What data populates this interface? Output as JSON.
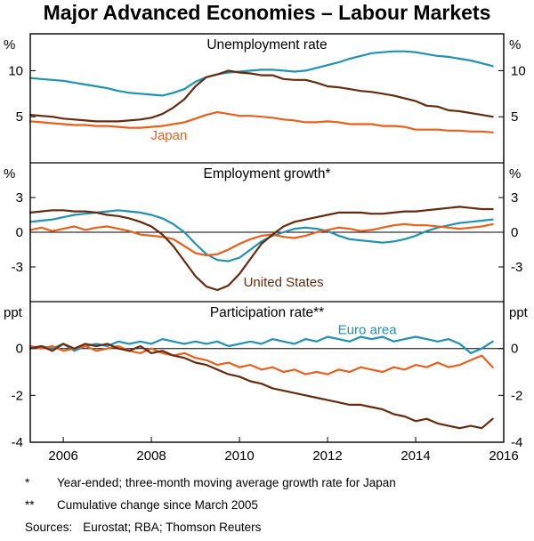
{
  "title": "Major Advanced Economies – Labour Markets",
  "colors": {
    "euro_area": "#2191B0",
    "united_states": "#662B0E",
    "japan": "#E8601C"
  },
  "x_axis": {
    "range": [
      2005.25,
      2016
    ],
    "ticks": [
      2006,
      2008,
      2010,
      2012,
      2014,
      2016
    ],
    "points": [
      2005.25,
      2005.5,
      2005.75,
      2006,
      2006.25,
      2006.5,
      2006.75,
      2007,
      2007.25,
      2007.5,
      2007.75,
      2008,
      2008.25,
      2008.5,
      2008.75,
      2009,
      2009.25,
      2009.5,
      2009.75,
      2010,
      2010.25,
      2010.5,
      2010.75,
      2011,
      2011.25,
      2011.5,
      2011.75,
      2012,
      2012.25,
      2012.5,
      2012.75,
      2013,
      2013.25,
      2013.5,
      2013.75,
      2014,
      2014.25,
      2014.5,
      2014.75,
      2015,
      2015.25,
      2015.5,
      2015.75
    ]
  },
  "chart_data": [
    {
      "type": "line",
      "title": "Unemployment rate",
      "unit": "%",
      "ylim": [
        0,
        14
      ],
      "yticks": [
        10,
        5
      ],
      "zero_line": false,
      "series": [
        {
          "name": "Euro area",
          "color_key": "euro_area",
          "values": [
            9.2,
            9.1,
            9.0,
            8.9,
            8.7,
            8.5,
            8.3,
            8.1,
            7.8,
            7.6,
            7.5,
            7.4,
            7.3,
            7.6,
            8.0,
            8.8,
            9.3,
            9.6,
            9.8,
            9.9,
            10.0,
            10.1,
            10.1,
            10.0,
            9.9,
            10.0,
            10.3,
            10.6,
            10.9,
            11.3,
            11.6,
            11.9,
            12.0,
            12.1,
            12.1,
            12.0,
            11.8,
            11.6,
            11.5,
            11.3,
            11.1,
            10.8,
            10.5
          ]
        },
        {
          "name": "United States",
          "color_key": "united_states",
          "values": [
            5.2,
            5.1,
            5.0,
            4.8,
            4.7,
            4.6,
            4.5,
            4.5,
            4.5,
            4.6,
            4.7,
            4.9,
            5.3,
            6.0,
            6.9,
            8.3,
            9.3,
            9.6,
            10.0,
            9.8,
            9.7,
            9.5,
            9.5,
            9.1,
            9.0,
            9.0,
            8.7,
            8.3,
            8.2,
            8.0,
            7.8,
            7.7,
            7.5,
            7.3,
            7.0,
            6.7,
            6.2,
            6.1,
            5.7,
            5.6,
            5.4,
            5.2,
            5.0
          ]
        },
        {
          "name": "Japan",
          "color_key": "japan",
          "label": {
            "text": "Japan",
            "x": 2008.4,
            "y": 2.5
          },
          "values": [
            4.5,
            4.4,
            4.3,
            4.2,
            4.1,
            4.1,
            4.0,
            4.0,
            3.9,
            3.8,
            3.8,
            3.9,
            4.0,
            4.2,
            4.4,
            4.8,
            5.2,
            5.5,
            5.3,
            5.1,
            5.1,
            5.0,
            4.9,
            4.7,
            4.6,
            4.4,
            4.4,
            4.5,
            4.4,
            4.2,
            4.2,
            4.2,
            4.0,
            4.0,
            3.9,
            3.6,
            3.6,
            3.6,
            3.5,
            3.5,
            3.4,
            3.4,
            3.3
          ]
        }
      ]
    },
    {
      "type": "line",
      "title": "Employment growth*",
      "unit": "%",
      "ylim": [
        -6,
        6
      ],
      "yticks": [
        3,
        0,
        -3
      ],
      "zero_line": true,
      "series": [
        {
          "name": "Euro area",
          "color_key": "euro_area",
          "values": [
            0.9,
            1.0,
            1.1,
            1.3,
            1.5,
            1.6,
            1.7,
            1.8,
            1.9,
            1.8,
            1.7,
            1.5,
            1.2,
            0.7,
            0.0,
            -1.0,
            -1.9,
            -2.4,
            -2.5,
            -2.2,
            -1.5,
            -0.8,
            -0.3,
            0.0,
            0.3,
            0.4,
            0.3,
            0.1,
            -0.3,
            -0.6,
            -0.7,
            -0.8,
            -0.9,
            -0.8,
            -0.6,
            -0.3,
            0.1,
            0.4,
            0.6,
            0.8,
            0.9,
            1.0,
            1.1
          ]
        },
        {
          "name": "Japan",
          "color_key": "japan",
          "values": [
            0.2,
            0.4,
            0.1,
            0.3,
            0.5,
            0.2,
            0.4,
            0.5,
            0.3,
            0.1,
            -0.2,
            -0.3,
            -0.4,
            -0.6,
            -1.2,
            -1.8,
            -2.0,
            -1.9,
            -1.5,
            -1.0,
            -0.6,
            -0.3,
            -0.2,
            -0.4,
            -0.5,
            -0.3,
            0.0,
            0.2,
            0.4,
            0.3,
            0.1,
            0.2,
            0.4,
            0.6,
            0.7,
            0.6,
            0.6,
            0.5,
            0.4,
            0.3,
            0.4,
            0.5,
            0.7
          ]
        },
        {
          "name": "United States",
          "color_key": "united_states",
          "label": {
            "text": "United States",
            "x": 2011.0,
            "y": -4.7
          },
          "values": [
            1.7,
            1.8,
            1.9,
            1.9,
            1.8,
            1.8,
            1.7,
            1.5,
            1.4,
            1.2,
            0.9,
            0.5,
            -0.2,
            -1.2,
            -2.5,
            -3.8,
            -4.7,
            -5.0,
            -4.6,
            -3.6,
            -2.3,
            -1.0,
            -0.2,
            0.5,
            0.9,
            1.1,
            1.3,
            1.5,
            1.7,
            1.7,
            1.7,
            1.6,
            1.6,
            1.7,
            1.8,
            1.8,
            1.9,
            2.0,
            2.1,
            2.2,
            2.1,
            2.0,
            2.0
          ]
        }
      ]
    },
    {
      "type": "line",
      "title": "Participation rate**",
      "unit": "ppt",
      "ylim": [
        -4,
        2
      ],
      "yticks": [
        0,
        -2,
        -4
      ],
      "zero_line": true,
      "series": [
        {
          "name": "Euro area",
          "color_key": "euro_area",
          "label": {
            "text": "Euro area",
            "x": 2012.9,
            "y": 0.62
          },
          "values": [
            0.0,
            0.1,
            0.0,
            0.2,
            -0.1,
            0.1,
            0.2,
            0.1,
            0.3,
            0.2,
            0.3,
            0.2,
            0.4,
            0.3,
            0.2,
            0.3,
            0.2,
            0.3,
            0.1,
            0.2,
            0.3,
            0.2,
            0.4,
            0.3,
            0.2,
            0.4,
            0.3,
            0.5,
            0.4,
            0.3,
            0.5,
            0.4,
            0.5,
            0.3,
            0.4,
            0.5,
            0.4,
            0.3,
            0.4,
            0.2,
            -0.2,
            0.0,
            0.3
          ]
        },
        {
          "name": "Japan",
          "color_key": "japan",
          "values": [
            0.1,
            0.0,
            0.1,
            -0.1,
            0.0,
            0.1,
            -0.1,
            0.0,
            0.1,
            -0.1,
            -0.2,
            0.0,
            -0.2,
            -0.3,
            -0.2,
            -0.4,
            -0.5,
            -0.7,
            -0.6,
            -0.8,
            -0.7,
            -0.9,
            -0.8,
            -1.0,
            -0.9,
            -1.1,
            -1.0,
            -1.1,
            -0.9,
            -1.0,
            -0.8,
            -0.9,
            -1.0,
            -0.8,
            -0.9,
            -0.7,
            -0.8,
            -0.6,
            -0.8,
            -0.7,
            -0.5,
            -0.3,
            -0.8
          ]
        },
        {
          "name": "United States",
          "color_key": "united_states",
          "values": [
            0.0,
            0.1,
            -0.1,
            0.2,
            0.0,
            0.2,
            0.1,
            0.2,
            0.0,
            -0.1,
            0.1,
            -0.2,
            -0.1,
            -0.3,
            -0.4,
            -0.6,
            -0.7,
            -0.9,
            -1.1,
            -1.2,
            -1.4,
            -1.5,
            -1.7,
            -1.8,
            -1.9,
            -2.0,
            -2.1,
            -2.2,
            -2.3,
            -2.4,
            -2.4,
            -2.5,
            -2.6,
            -2.8,
            -2.9,
            -3.1,
            -3.0,
            -3.2,
            -3.3,
            -3.4,
            -3.3,
            -3.4,
            -3.0
          ]
        }
      ]
    }
  ],
  "footnotes": [
    {
      "marker": "*",
      "text": "Year-ended; three-month moving average growth rate for Japan"
    },
    {
      "marker": "**",
      "text": "Cumulative change since March 2005"
    }
  ],
  "sources": {
    "label": "Sources:",
    "text": "Eurostat; RBA; Thomson Reuters"
  }
}
